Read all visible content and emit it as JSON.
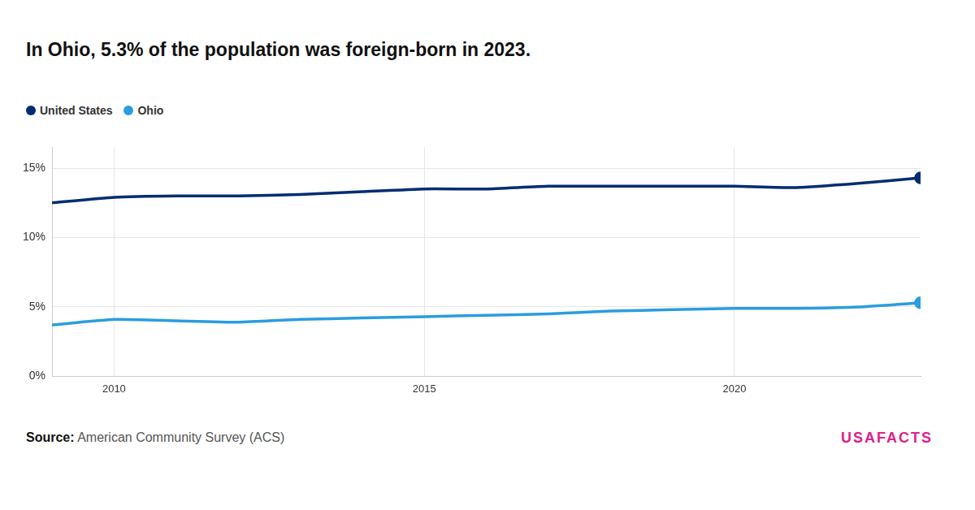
{
  "chart_data": {
    "type": "line",
    "title": "In Ohio, 5.3% of the population was foreign-born in 2023.",
    "x": [
      2009,
      2010,
      2011,
      2012,
      2013,
      2014,
      2015,
      2016,
      2017,
      2018,
      2019,
      2020,
      2021,
      2022,
      2023
    ],
    "series": [
      {
        "name": "United States",
        "color": "#002d72",
        "values": [
          12.5,
          12.9,
          13.0,
          13.0,
          13.1,
          13.3,
          13.5,
          13.5,
          13.7,
          13.7,
          13.7,
          13.7,
          13.6,
          13.9,
          14.3
        ]
      },
      {
        "name": "Ohio",
        "color": "#2a9ddf",
        "values": [
          3.7,
          4.1,
          4.0,
          3.9,
          4.1,
          4.2,
          4.3,
          4.4,
          4.5,
          4.7,
          4.8,
          4.9,
          4.9,
          5.0,
          5.3
        ]
      }
    ],
    "xlim": [
      2009,
      2023
    ],
    "xticks": [
      2010,
      2015,
      2020
    ],
    "ylim": [
      0,
      16.5
    ],
    "yticks": [
      {
        "value": 0,
        "label": "0%"
      },
      {
        "value": 5,
        "label": "5%"
      },
      {
        "value": 10,
        "label": "10%"
      },
      {
        "value": 15,
        "label": "15%"
      }
    ],
    "grid": true,
    "legend": "top-left",
    "marker": "last",
    "source_label": "Source:",
    "source": "American Community Survey (ACS)",
    "logo": "USAFACTS"
  }
}
